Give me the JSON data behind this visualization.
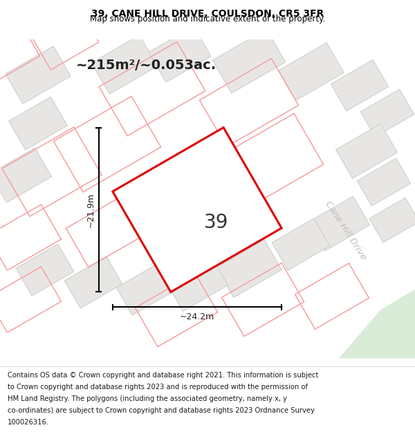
{
  "title_line1": "39, CANE HILL DRIVE, COULSDON, CR5 3FR",
  "title_line2": "Map shows position and indicative extent of the property.",
  "area_text": "~215m²/~0.053ac.",
  "width_label": "~24.2m",
  "height_label": "~21.9m",
  "number_label": "39",
  "street_label": "Cane Hill Drive",
  "footer_lines": [
    "Contains OS data © Crown copyright and database right 2021. This information is subject",
    "to Crown copyright and database rights 2023 and is reproduced with the permission of",
    "HM Land Registry. The polygons (including the associated geometry, namely x, y",
    "co-ordinates) are subject to Crown copyright and database rights 2023 Ordnance Survey",
    "100026316."
  ],
  "map_bg": "#ffffff",
  "footer_bg": "#ffffff",
  "highlight_color": "#dd0000",
  "neighbor_line_color": "#f5a0a0",
  "neighbor_fill_color": "#e8e6e4",
  "neighbor_border_color": "#d0ceca",
  "green_fill": "#d8ecd8",
  "street_color": "#c0bebb"
}
